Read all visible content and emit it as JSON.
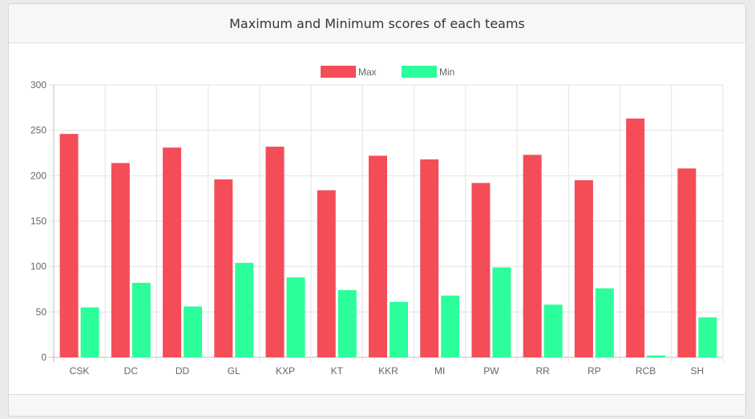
{
  "panel": {
    "title": "Maximum and Minimum scores of each teams"
  },
  "chart_data": {
    "type": "bar",
    "categories": [
      "CSK",
      "DC",
      "DD",
      "GL",
      "KXP",
      "KT",
      "KKR",
      "MI",
      "PW",
      "RR",
      "RP",
      "RCB",
      "SH"
    ],
    "series": [
      {
        "name": "Max",
        "color": "#f44d58",
        "values": [
          246,
          214,
          231,
          196,
          232,
          184,
          222,
          218,
          192,
          223,
          195,
          263,
          208
        ]
      },
      {
        "name": "Min",
        "color": "#2bfe9b",
        "values": [
          55,
          82,
          56,
          104,
          88,
          74,
          61,
          68,
          99,
          58,
          76,
          2,
          44
        ]
      }
    ],
    "ylim": [
      0,
      300
    ],
    "yticks": [
      "0",
      "50",
      "100",
      "150",
      "200",
      "250",
      "300"
    ],
    "grid": true,
    "legend": "top-center",
    "xlabel": "",
    "ylabel": ""
  }
}
